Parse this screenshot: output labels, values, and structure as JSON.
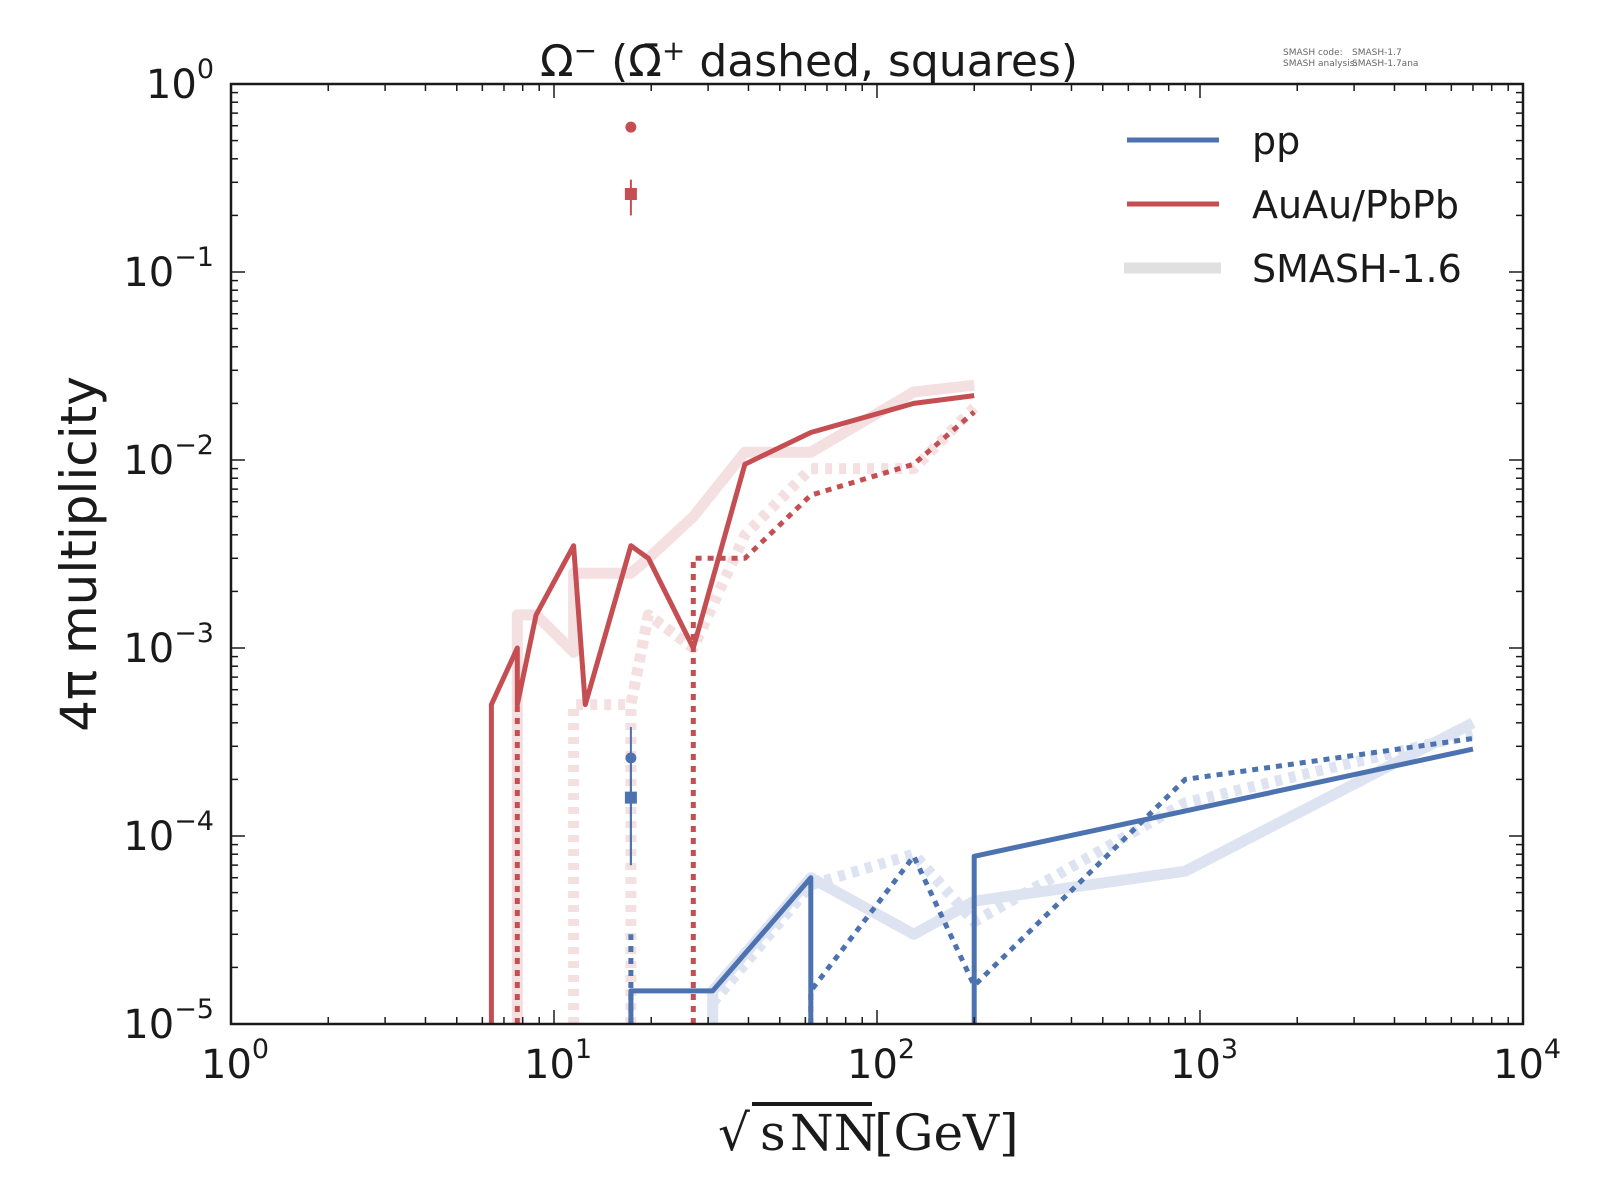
{
  "chart_data": {
    "type": "line",
    "title": "Ω⁻ (Ω̄⁺ dashed, squares)",
    "title_parts": {
      "main": "Ω",
      "main_sup": "−",
      "paren_open": " (",
      "anti": "Ω̄",
      "anti_sup": "+",
      "rest": " dashed, squares)"
    },
    "xlabel": "√sNN [GeV]",
    "xlabel_parts": {
      "sqrt": "√",
      "s": "s",
      "sub": "NN",
      "unit": "[GeV]"
    },
    "ylabel": "4π multiplicity",
    "xscale": "log",
    "yscale": "log",
    "xlim": [
      1,
      10000
    ],
    "ylim": [
      1e-05,
      1
    ],
    "x_ticks": [
      {
        "base": "10",
        "exp": "0",
        "value": 1
      },
      {
        "base": "10",
        "exp": "1",
        "value": 10
      },
      {
        "base": "10",
        "exp": "2",
        "value": 100
      },
      {
        "base": "10",
        "exp": "3",
        "value": 1000
      },
      {
        "base": "10",
        "exp": "4",
        "value": 10000
      }
    ],
    "y_ticks": [
      {
        "base": "10",
        "exp": "0",
        "value": 1
      },
      {
        "base": "10",
        "exp": "−1",
        "value": 0.1
      },
      {
        "base": "10",
        "exp": "−2",
        "value": 0.01
      },
      {
        "base": "10",
        "exp": "−3",
        "value": 0.001
      },
      {
        "base": "10",
        "exp": "−4",
        "value": 0.0001
      },
      {
        "base": "10",
        "exp": "−5",
        "value": 1e-05
      }
    ],
    "grid": false,
    "legend_position": "top-right",
    "legend": [
      {
        "label": "pp",
        "color": "#4c72b0",
        "style": "solid"
      },
      {
        "label": "AuAu/PbPb",
        "color": "#c44e52",
        "style": "solid"
      },
      {
        "label": "SMASH-1.6",
        "color": "#e0e0e0",
        "style": "thick"
      }
    ],
    "annotation": {
      "line1_key": "SMASH code:",
      "line1_val": "SMASH-1.7",
      "line2_key": "SMASH analysis:",
      "line2_val": "SMASH-1.7ana"
    },
    "colors": {
      "pp": "#4c72b0",
      "AuAu": "#c44e52",
      "pp_old": "#dde3f1",
      "AuAu_old": "#f5e0e1",
      "axis": "#1a1a1a"
    },
    "series": [
      {
        "name": "SMASH-1.6 AuAu/PbPb Ω⁻",
        "system": "AuAu",
        "version": "old",
        "style": "solid",
        "x": [
          7.7,
          7.7,
          8.8,
          11.5,
          11.5,
          17.3,
          19.6,
          27,
          39,
          62.4,
          130,
          200
        ],
        "y": [
          1e-05,
          0.0015,
          0.0015,
          0.00095,
          0.0025,
          0.0025,
          0.003,
          0.005,
          0.011,
          0.011,
          0.023,
          0.025
        ]
      },
      {
        "name": "SMASH-1.6 AuAu/PbPb Ω̄⁺",
        "system": "AuAu",
        "version": "old",
        "style": "dashed",
        "x": [
          11.5,
          11.5,
          17.3,
          17.3,
          19.6,
          27,
          39,
          62.4,
          130,
          200
        ],
        "y": [
          1e-05,
          0.0005,
          0.0005,
          0.0005,
          0.0015,
          0.001,
          0.004,
          0.009,
          0.009,
          0.019
        ]
      },
      {
        "name": "SMASH-1.6 AuAu/PbPb Ω̄⁺ (17.3 drop)",
        "system": "AuAu",
        "version": "old",
        "style": "dashed",
        "x": [
          17.3,
          17.3,
          19.6,
          27
        ],
        "y": [
          1e-05,
          0.0005,
          0.0015,
          0.001
        ]
      },
      {
        "name": "SMASH-1.7 AuAu/PbPb Ω⁻",
        "system": "AuAu",
        "version": "new",
        "style": "solid",
        "x": [
          6.4,
          6.4,
          7.7,
          7.7,
          8.8,
          11.5,
          12.5,
          17.3,
          19.6,
          27,
          39,
          62.4,
          130,
          200
        ],
        "y": [
          1e-05,
          0.0005,
          0.001,
          0.0005,
          0.0015,
          0.0035,
          0.0005,
          0.0035,
          0.003,
          0.001,
          0.0095,
          0.014,
          0.02,
          0.022
        ]
      },
      {
        "name": "SMASH-1.7 AuAu/PbPb Ω̄⁺",
        "system": "AuAu",
        "version": "new",
        "style": "dashed",
        "x": [
          7.7,
          7.7
        ],
        "y": [
          1e-05,
          0.0005
        ]
      },
      {
        "name": "SMASH-1.7 AuAu/PbPb Ω̄⁺ (27 GeV onward)",
        "system": "AuAu",
        "version": "new",
        "style": "dashed",
        "x": [
          27,
          27,
          39,
          62.4,
          130,
          200
        ],
        "y": [
          1e-05,
          0.003,
          0.003,
          0.0065,
          0.0095,
          0.018
        ]
      },
      {
        "name": "SMASH-1.6 pp Ω⁻",
        "system": "pp",
        "version": "old",
        "style": "solid",
        "x": [
          31,
          31,
          62.4,
          130,
          200,
          900,
          7000
        ],
        "y": [
          1e-05,
          1.5e-05,
          6e-05,
          3e-05,
          4.5e-05,
          6.5e-05,
          0.0004
        ]
      },
      {
        "name": "SMASH-1.6 pp Ω̄⁺",
        "system": "pp",
        "version": "old",
        "style": "dashed",
        "x": [
          31,
          62.4,
          130,
          200,
          900,
          7000
        ],
        "y": [
          1.3e-05,
          5.5e-05,
          8e-05,
          3.5e-05,
          0.00015,
          0.00035
        ]
      },
      {
        "name": "SMASH-1.7 pp Ω⁻",
        "system": "pp",
        "version": "new",
        "style": "solid",
        "x": [
          17.3,
          17.3,
          31,
          62.4,
          62.4
        ],
        "y": [
          1e-05,
          1.5e-05,
          1.5e-05,
          6e-05,
          1e-05
        ]
      },
      {
        "name": "SMASH-1.7 pp Ω⁻ (200 GeV onward)",
        "system": "pp",
        "version": "new",
        "style": "solid",
        "x": [
          200,
          200,
          7000
        ],
        "y": [
          1e-05,
          7.8e-05,
          0.00029
        ]
      },
      {
        "name": "SMASH-1.7 pp Ω̄⁺",
        "system": "pp",
        "version": "new",
        "style": "dashed",
        "x": [
          17.3,
          17.3
        ],
        "y": [
          1e-05,
          3e-05
        ]
      },
      {
        "name": "SMASH-1.7 pp Ω̄⁺ (62.4 GeV onward)",
        "system": "pp",
        "version": "new",
        "style": "dashed",
        "x": [
          62.4,
          62.4,
          130,
          200,
          200,
          900,
          7000
        ],
        "y": [
          1e-05,
          1.5e-05,
          7.8e-05,
          1.6e-05,
          1.6e-05,
          0.0002,
          0.00033
        ]
      }
    ],
    "experimental_points": [
      {
        "name": "PbPb Ω⁻ data",
        "system": "AuAu",
        "marker": "circle",
        "x": 17.3,
        "y": 0.59,
        "yerr_low": 0.59,
        "yerr_high": 0.59
      },
      {
        "name": "PbPb Ω̄⁺ data",
        "system": "AuAu",
        "marker": "square",
        "x": 17.3,
        "y": 0.26,
        "yerr_low": 0.2,
        "yerr_high": 0.31
      },
      {
        "name": "pp Ω⁻ data",
        "system": "pp",
        "marker": "circle",
        "x": 17.3,
        "y": 0.00026,
        "yerr_low": 7e-05,
        "yerr_high": 0.00038
      },
      {
        "name": "pp Ω̄⁺ data",
        "system": "pp",
        "marker": "square",
        "x": 17.3,
        "y": 0.00016,
        "yerr_low": 7e-05,
        "yerr_high": 0.00025
      }
    ]
  }
}
